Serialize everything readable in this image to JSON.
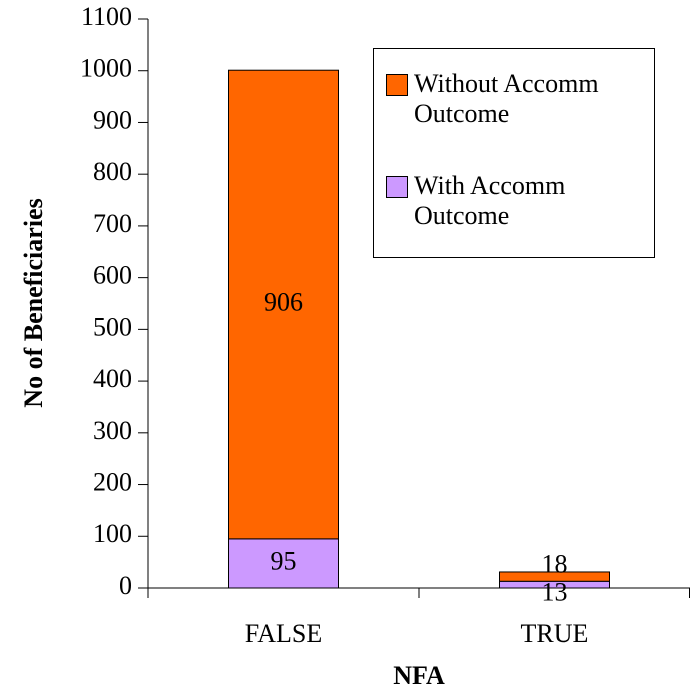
{
  "chart_data": {
    "type": "bar",
    "stacked": true,
    "categories": [
      "FALSE",
      "TRUE"
    ],
    "series": [
      {
        "name": "With Accomm Outcome",
        "color": "#cc99ff",
        "values": [
          95,
          13
        ]
      },
      {
        "name": "Without Accomm Outcome",
        "color": "#ff6600",
        "values": [
          906,
          18
        ]
      }
    ],
    "x_label": "NFA",
    "y_label": "No of Beneficiaries",
    "ylim": [
      0,
      1100
    ],
    "yticks": [
      0,
      100,
      200,
      300,
      400,
      500,
      600,
      700,
      800,
      900,
      1000,
      1100
    ],
    "grid": false,
    "legend": "upper right"
  }
}
